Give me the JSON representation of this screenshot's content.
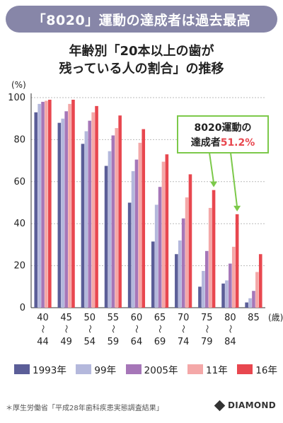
{
  "banner": {
    "title": "「8020」運動の達成者は過去最高"
  },
  "chart_title": {
    "line1": "年齢別「20本以上の歯が",
    "line2": "残っている人の割合」の推移"
  },
  "callout": {
    "line1": "8020運動の",
    "line2_prefix": "達成者",
    "line2_value": "51.2%"
  },
  "footer": {
    "source": "＊厚生労働省「平成28年歯科疾患実態調査結果」",
    "brand": "DIAMOND"
  },
  "colors": {
    "banner": "#8786a8",
    "callout_green": "#7cc94a",
    "highlight_red": "#e8474f",
    "series": [
      "#5b5e98",
      "#b4b8dc",
      "#a676b8",
      "#f4a8a8",
      "#e8474f"
    ]
  },
  "chart_data": {
    "type": "bar",
    "ylabel": "(%)",
    "xunit": "(歳)",
    "ylim": [
      0,
      100
    ],
    "yticks": [
      0,
      20,
      40,
      60,
      80,
      100
    ],
    "categories": [
      {
        "top": "40",
        "bottom": "44"
      },
      {
        "top": "45",
        "bottom": "49"
      },
      {
        "top": "50",
        "bottom": "54"
      },
      {
        "top": "55",
        "bottom": "59"
      },
      {
        "top": "60",
        "bottom": "64"
      },
      {
        "top": "65",
        "bottom": "69"
      },
      {
        "top": "70",
        "bottom": "74"
      },
      {
        "top": "75",
        "bottom": "79"
      },
      {
        "top": "80",
        "bottom": "84"
      },
      {
        "top": "85",
        "bottom": ""
      }
    ],
    "series": [
      {
        "name": "1993年",
        "values": [
          93,
          88,
          78,
          67.5,
          50,
          31.5,
          25.5,
          10,
          11.5,
          2.5
        ]
      },
      {
        "name": "99年",
        "values": [
          97,
          90,
          84,
          74.5,
          65,
          49,
          32,
          17.5,
          13,
          4.5
        ]
      },
      {
        "name": "2005年",
        "values": [
          98,
          93.5,
          89,
          82,
          70.5,
          57.5,
          42.5,
          27,
          21,
          8
        ]
      },
      {
        "name": "11年",
        "values": [
          98.5,
          97,
          93,
          85.5,
          78.5,
          69.5,
          52.5,
          47.5,
          29,
          17
        ]
      },
      {
        "name": "16年",
        "values": [
          99,
          99,
          96,
          91.5,
          85,
          73,
          63.5,
          56,
          44.5,
          25.5
        ]
      }
    ],
    "grid": true,
    "legend_position": "bottom"
  }
}
